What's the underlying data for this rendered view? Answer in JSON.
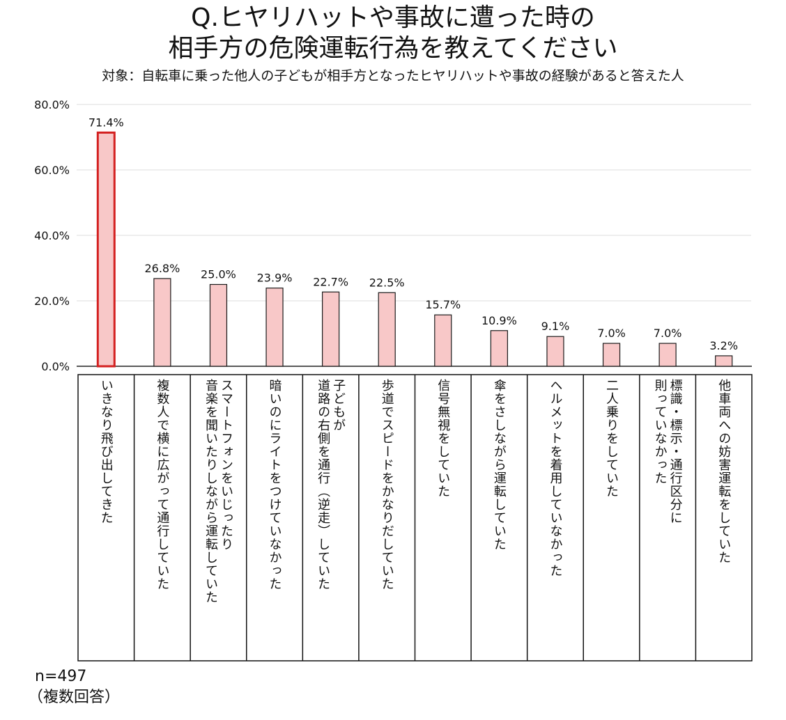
{
  "title_line1": "Q.ヒヤリハットや事故に遭った時の",
  "title_line2": "相手方の危険運転行為を教えてください",
  "subtitle": "対象：自転車に乗った他人の子どもが相手方となったヒヤリハットや事故の経験があると答えた人",
  "sample_size": "n=497",
  "multiple_answer": "（複数回答）",
  "colors": {
    "bar_fill": "#f8c8c8",
    "bar_stroke": "#1a1a1a",
    "highlight_stroke": "#d42020",
    "grid": "#dddddd"
  },
  "chart_data": {
    "type": "bar",
    "title": "Q.ヒヤリハットや事故に遭った時の相手方の危険運転行為を教えてください",
    "xlabel": "",
    "ylabel": "",
    "ylim": [
      0,
      80
    ],
    "y_ticks": [
      "0.0%",
      "20.0%",
      "40.0%",
      "60.0%",
      "80.0%"
    ],
    "grid": true,
    "highlight_index": 0,
    "categories": [
      [
        "いきなり飛び出してきた"
      ],
      [
        "複数人で横に広がって通行していた"
      ],
      [
        "スマートフォンをいじったり",
        "音楽を聞いたりしながら運転していた"
      ],
      [
        "暗いのにライトをつけていなかった"
      ],
      [
        "子どもが",
        "道路の右側を通行（逆走）していた"
      ],
      [
        "歩道でスピードをかなりだしていた"
      ],
      [
        "信号無視をしていた"
      ],
      [
        "傘をさしながら運転していた"
      ],
      [
        "ヘルメットを着用していなかった"
      ],
      [
        "二人乗りをしていた"
      ],
      [
        "標識・標示・通行区分に",
        "則っていなかった"
      ],
      [
        "他車両への妨害運転をしていた"
      ]
    ],
    "values": [
      71.4,
      26.8,
      25.0,
      23.9,
      22.7,
      22.5,
      15.7,
      10.9,
      9.1,
      7.0,
      7.0,
      3.2
    ],
    "value_labels": [
      "71.4%",
      "26.8%",
      "25.0%",
      "23.9%",
      "22.7%",
      "22.5%",
      "15.7%",
      "10.9%",
      "9.1%",
      "7.0%",
      "7.0%",
      "3.2%"
    ]
  }
}
